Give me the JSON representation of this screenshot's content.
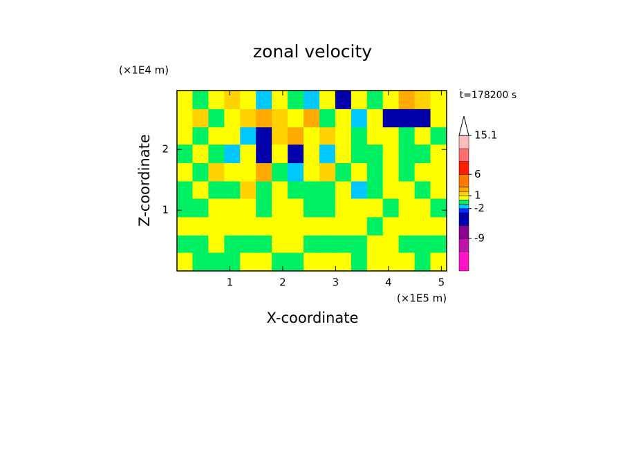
{
  "chart_data": {
    "type": "contour",
    "title": "zonal velocity",
    "xlabel": "X-coordinate",
    "ylabel": "Z-coordinate",
    "x_unit_label": "(×1E5 m)",
    "z_unit_label": "(×1E4 m)",
    "time_label": "t=178200 s",
    "x": [
      0.15,
      0.45,
      0.75,
      1.05,
      1.35,
      1.65,
      1.95,
      2.25,
      2.55,
      2.85,
      3.15,
      3.45,
      3.75,
      4.05,
      4.35,
      4.65,
      4.95
    ],
    "z": [
      0.15,
      0.45,
      0.74,
      1.04,
      1.34,
      1.63,
      1.93,
      2.23,
      2.52,
      2.82
    ],
    "values": [
      [
        0.5,
        -0.5,
        -0.5,
        -0.5,
        0.5,
        0.5,
        -0.5,
        -0.5,
        0.5,
        0.5,
        0.5,
        -0.5,
        0.5,
        0.5,
        0.5,
        -0.5,
        0.5
      ],
      [
        -0.5,
        -0.5,
        0.5,
        -0.5,
        -0.5,
        -0.5,
        0.5,
        0.5,
        -0.5,
        -0.5,
        -0.5,
        -0.5,
        0.5,
        0.5,
        -0.5,
        -0.5,
        -0.5
      ],
      [
        0.5,
        0.5,
        0.5,
        0.5,
        0.5,
        0.5,
        0.5,
        0.5,
        0.5,
        0.5,
        0.5,
        0.5,
        -0.5,
        0.5,
        0.5,
        0.5,
        0.5
      ],
      [
        -0.5,
        -0.5,
        0.5,
        0.5,
        0.5,
        -0.5,
        0.5,
        0.5,
        -0.5,
        -0.5,
        0.5,
        0.5,
        0.5,
        -0.5,
        0.5,
        0.5,
        -0.5
      ],
      [
        -0.5,
        0.5,
        -0.5,
        -0.5,
        1.5,
        -0.5,
        0.5,
        -0.5,
        -0.5,
        -0.5,
        0.5,
        -1.5,
        -0.5,
        0.5,
        0.5,
        -0.5,
        0.5
      ],
      [
        0.5,
        -0.5,
        1.5,
        0.5,
        0.5,
        2.5,
        -0.5,
        -1.5,
        0.5,
        1.5,
        -0.5,
        0.5,
        -0.5,
        0.5,
        -0.5,
        0.5,
        0.5
      ],
      [
        -0.5,
        0.5,
        -0.5,
        -1.5,
        0.5,
        -3.5,
        0.5,
        -4,
        0.5,
        -1.5,
        0.5,
        -0.5,
        -0.5,
        0.5,
        -0.5,
        -0.5,
        0.5
      ],
      [
        0.5,
        -0.5,
        0.5,
        0.5,
        -1.5,
        -3.5,
        1.5,
        2.5,
        0.5,
        1.5,
        0.5,
        -0.5,
        0.5,
        0.5,
        -0.5,
        0.5,
        -0.5
      ],
      [
        0.5,
        1.5,
        -0.5,
        0.5,
        1.5,
        2.5,
        1.5,
        0.5,
        2.5,
        -0.5,
        0.5,
        -1.5,
        0.5,
        -4.5,
        -5,
        -3.5,
        0.5
      ],
      [
        0.5,
        -0.5,
        0.5,
        1.5,
        0.5,
        -1.5,
        0.5,
        -0.5,
        -1.5,
        0.5,
        -4,
        0.5,
        -0.5,
        0.5,
        2.5,
        1.5,
        0.5
      ]
    ],
    "xlim": [
      0,
      5.1
    ],
    "ylim": [
      0,
      2.97
    ],
    "xticks": [
      1,
      2,
      3,
      4,
      5
    ],
    "yticks": [
      1,
      2
    ],
    "levels": [
      -16.6,
      -12,
      -9,
      -6,
      -3,
      -2,
      -1,
      0,
      1,
      2,
      3,
      6,
      9,
      12,
      15.1
    ],
    "level_colors": [
      "#ff14c8",
      "#be14aa",
      "#8c0096",
      "#0000aa",
      "#0032ff",
      "#00c8ff",
      "#00f064",
      "#ffff00",
      "#ffd200",
      "#ffaa00",
      "#ff7800",
      "#ff1e00",
      "#ff6e6e",
      "#ffbebe"
    ],
    "clim": [
      -16.6,
      15.1
    ],
    "colorbar_ticks": [
      15.1,
      6,
      1,
      -2,
      -9
    ]
  }
}
